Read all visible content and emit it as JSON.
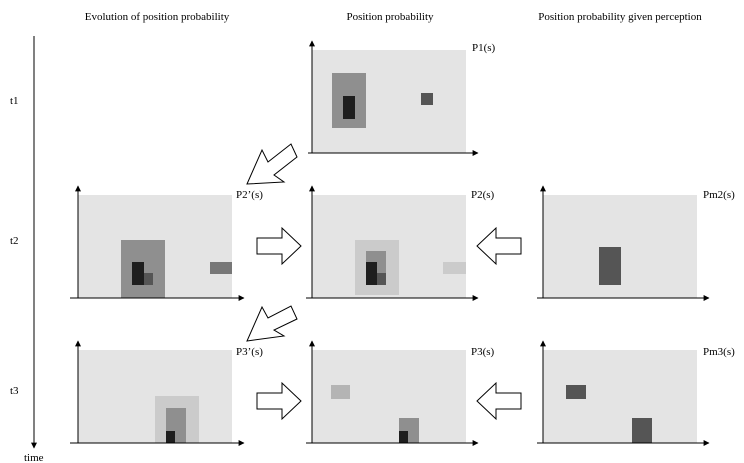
{
  "headers": {
    "evolution": "Evolution of position probability",
    "position": "Position probability",
    "perception": "Position probability given perception"
  },
  "time_axis": {
    "label": "time",
    "steps": [
      "t1",
      "t2",
      "t3"
    ]
  },
  "panels": {
    "p1": "P1(s)",
    "p2_prime": "P2’(s)",
    "p2": "P2(s)",
    "pm2": "Pm2(s)",
    "p3_prime": "P3’(s)",
    "p3": "P3(s)",
    "pm3": "Pm3(s)"
  },
  "colors": {
    "background_region": "#e4e4e4",
    "low_probability": "#cbcbcb",
    "medium_probability": "#8f8f8f",
    "high_probability": "#555555",
    "peak_probability": "#1e1e1e"
  }
}
